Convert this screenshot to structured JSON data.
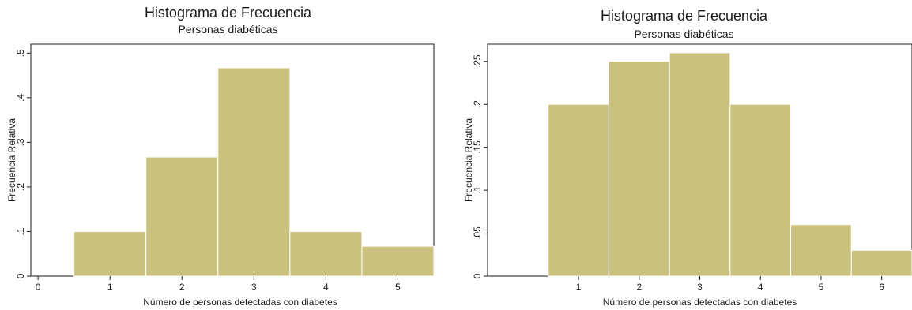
{
  "chart_data": [
    {
      "type": "bar",
      "title": "Histograma de Frecuencia",
      "subtitle": "Personas diabéticas",
      "xlabel": "Número de personas detectadas con diabetes",
      "ylabel": "Frecuencia Relativa",
      "x_ticks": [
        0,
        1,
        2,
        3,
        4,
        5
      ],
      "x_tick_labels": [
        "0",
        "1",
        "2",
        "3",
        "4",
        "5"
      ],
      "y_ticks": [
        0,
        0.1,
        0.2,
        0.3,
        0.4,
        0.5
      ],
      "y_tick_labels": [
        "0",
        ".1",
        ".2",
        ".3",
        ".4",
        ".5"
      ],
      "xlim": [
        -0.1,
        5.5
      ],
      "ylim": [
        0,
        0.52
      ],
      "bar_color": "#c9c17d",
      "bins": [
        {
          "x0": 0.5,
          "x1": 1.5,
          "value": 0.1
        },
        {
          "x0": 1.5,
          "x1": 2.5,
          "value": 0.267
        },
        {
          "x0": 2.5,
          "x1": 3.5,
          "value": 0.467
        },
        {
          "x0": 3.5,
          "x1": 4.5,
          "value": 0.1
        },
        {
          "x0": 4.5,
          "x1": 5.5,
          "value": 0.067
        }
      ]
    },
    {
      "type": "bar",
      "title": "Histograma de Frecuencia",
      "subtitle": "Personas diabéticas",
      "xlabel": "Número de personas detectadas con diabetes",
      "ylabel": "Frecuencia Relativa",
      "x_ticks": [
        1,
        2,
        3,
        4,
        5,
        6
      ],
      "x_tick_labels": [
        "1",
        "2",
        "3",
        "4",
        "5",
        "6"
      ],
      "y_ticks": [
        0,
        0.05,
        0.1,
        0.15,
        0.2,
        0.25
      ],
      "y_tick_labels": [
        "0",
        ".05",
        ".1",
        ".15",
        ".2",
        ".25"
      ],
      "xlim": [
        -0.5,
        6.5
      ],
      "ylim": [
        0,
        0.27
      ],
      "bar_color": "#c9c17d",
      "bins": [
        {
          "x0": 0.5,
          "x1": 1.5,
          "value": 0.2
        },
        {
          "x0": 1.5,
          "x1": 2.5,
          "value": 0.25
        },
        {
          "x0": 2.5,
          "x1": 3.5,
          "value": 0.26
        },
        {
          "x0": 3.5,
          "x1": 4.5,
          "value": 0.2
        },
        {
          "x0": 4.5,
          "x1": 5.5,
          "value": 0.06
        },
        {
          "x0": 5.5,
          "x1": 6.5,
          "value": 0.03
        }
      ]
    }
  ]
}
